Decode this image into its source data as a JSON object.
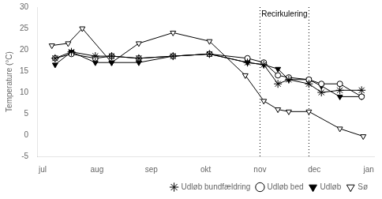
{
  "chart_data": {
    "type": "line",
    "y_label": "Temperature (°C)",
    "xlim": [
      -0.1,
      6.1
    ],
    "xticks": [
      {
        "value": 0,
        "label": "jul"
      },
      {
        "value": 1,
        "label": "aug"
      },
      {
        "value": 2,
        "label": "sep"
      },
      {
        "value": 3,
        "label": "okt"
      },
      {
        "value": 4,
        "label": "nov"
      },
      {
        "value": 5,
        "label": "dec"
      },
      {
        "value": 6,
        "label": "jan"
      }
    ],
    "ylim": [
      -5,
      30
    ],
    "yticks": [
      -5,
      0,
      5,
      10,
      15,
      20,
      25,
      30
    ],
    "grid": false,
    "legend": "lower right",
    "series": [
      {
        "name": "Udløb bundfældring",
        "color": "#000000",
        "marker": "star",
        "x": [
          0.23,
          0.53,
          0.97,
          1.27,
          1.77,
          2.4,
          3.07,
          3.77,
          4.07,
          4.33,
          4.53,
          4.9,
          5.13,
          5.47,
          5.87
        ],
        "values": [
          18.0,
          19.5,
          18.5,
          18.5,
          18.0,
          18.5,
          19.0,
          17.0,
          16.5,
          12.0,
          13.0,
          12.0,
          10.0,
          10.5,
          10.5
        ]
      },
      {
        "name": "Udløb bed",
        "color": "#000000",
        "marker": "circle-open",
        "x": [
          0.23,
          0.53,
          0.97,
          1.27,
          1.77,
          2.4,
          3.07,
          3.77,
          4.07,
          4.33,
          4.53,
          4.9,
          5.13,
          5.47,
          5.87
        ],
        "values": [
          18.0,
          19.0,
          18.0,
          18.5,
          18.0,
          18.5,
          19.0,
          18.0,
          17.0,
          14.0,
          13.5,
          13.0,
          12.0,
          12.0,
          9.0
        ]
      },
      {
        "name": "Udløb",
        "color": "#000000",
        "marker": "triangle-down",
        "x": [
          0.23,
          0.53,
          0.97,
          1.27,
          1.77,
          2.4,
          3.07,
          3.77,
          4.07,
          4.33,
          4.53,
          4.9,
          5.13,
          5.47,
          5.87
        ],
        "values": [
          16.5,
          19.5,
          17.0,
          17.0,
          17.0,
          18.5,
          19.0,
          17.0,
          16.5,
          15.5,
          13.0,
          13.0,
          11.5,
          9.0,
          9.0
        ]
      },
      {
        "name": "Sø",
        "color": "#000000",
        "marker": "triangle-down-open",
        "x": [
          0.17,
          0.47,
          0.73,
          1.27,
          1.77,
          2.4,
          3.07,
          3.73,
          4.07,
          4.33,
          4.53,
          4.9,
          5.47,
          5.9
        ],
        "values": [
          21.0,
          21.5,
          25.0,
          17.0,
          21.5,
          24.0,
          22.0,
          14.0,
          8.0,
          6.0,
          5.5,
          5.5,
          1.5,
          -0.3
        ]
      }
    ],
    "vlines": [
      {
        "x": 4.0,
        "line_style": "dotted"
      },
      {
        "x": 4.9,
        "line_style": "dotted"
      }
    ],
    "annotations": [
      {
        "text": "Recirkulering",
        "x": 4.45,
        "y": 29.3
      }
    ]
  }
}
